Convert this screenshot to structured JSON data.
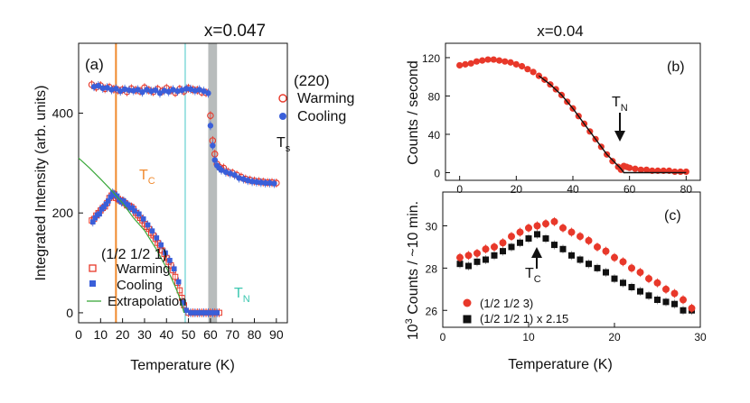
{
  "colors": {
    "warming": "#e8382a",
    "cooling": "#3a5fd9",
    "tc_line": "#f08a2e",
    "tn_line": "#9fe2e2",
    "ts_band": "#b8bcbc",
    "extrapolation": "#3aa83a",
    "cooling_b": "#111111",
    "fit_b": "#111111"
  },
  "chart_data": [
    {
      "id": "a",
      "type": "scatter",
      "title": "x=0.047",
      "panel_label": "(a)",
      "xlabel": "Temperature (K)",
      "ylabel": "Integrated Intensity (arb. units)",
      "xlim": [
        0,
        95
      ],
      "ylim": [
        -20,
        540
      ],
      "xticks": [
        0,
        10,
        20,
        30,
        40,
        50,
        60,
        70,
        80,
        90
      ],
      "yticks": [
        0,
        200,
        400
      ],
      "tc": {
        "label_main": "T",
        "label_sub": "C",
        "x": 17
      },
      "tn": {
        "label_main": "T",
        "label_sub": "N",
        "x": 48.5
      },
      "ts": {
        "label_main": "T",
        "label_sub": "s",
        "x_from": 59,
        "x_to": 63
      },
      "legend_220": {
        "title": "(220)",
        "warming": "Warming",
        "cooling": "Cooling"
      },
      "legend_half": {
        "title": "(1/2 1/2 1)",
        "warming": "Warming",
        "cooling": "Cooling",
        "extrapolation": "Extrapolation"
      },
      "series": [
        {
          "name": "(220) Warming",
          "marker": "open-circle",
          "x": [
            6,
            8,
            10,
            12,
            14,
            16,
            18,
            20,
            22,
            24,
            26,
            28,
            30,
            32,
            34,
            36,
            38,
            40,
            42,
            44,
            46,
            48,
            50,
            52,
            54,
            56,
            58,
            60,
            61,
            62,
            63,
            64,
            65,
            66,
            68,
            70,
            72,
            74,
            76,
            78,
            80,
            82,
            84,
            86,
            88,
            90
          ],
          "y": [
            457,
            452,
            455,
            449,
            452,
            448,
            446,
            447,
            443,
            449,
            446,
            444,
            451,
            446,
            443,
            448,
            444,
            450,
            446,
            441,
            448,
            444,
            450,
            447,
            446,
            442,
            441,
            395,
            345,
            318,
            298,
            292,
            288,
            290,
            282,
            280,
            276,
            272,
            268,
            266,
            264,
            263,
            262,
            261,
            261,
            260
          ]
        },
        {
          "name": "(220) Cooling",
          "marker": "filled-circle",
          "x": [
            7,
            9,
            11,
            13,
            15,
            17,
            19,
            21,
            23,
            25,
            27,
            29,
            31,
            33,
            35,
            37,
            39,
            41,
            43,
            45,
            47,
            49,
            51,
            53,
            55,
            57,
            59,
            60,
            61,
            62,
            63,
            64,
            65,
            67,
            69,
            71,
            73,
            75,
            77,
            79,
            81,
            83,
            85,
            87,
            89
          ],
          "y": [
            453,
            455,
            450,
            451,
            447,
            449,
            444,
            448,
            446,
            445,
            447,
            442,
            447,
            444,
            446,
            440,
            445,
            443,
            447,
            444,
            446,
            449,
            448,
            445,
            447,
            444,
            440,
            375,
            335,
            306,
            295,
            290,
            286,
            282,
            279,
            276,
            270,
            268,
            265,
            263,
            262,
            261,
            260,
            260,
            259
          ]
        },
        {
          "name": "(1/2 1/2 1) Warming",
          "marker": "open-square",
          "x": [
            6,
            7,
            8,
            9,
            10,
            11,
            12,
            13,
            14,
            15,
            16,
            17,
            18,
            19,
            20,
            21,
            22,
            23,
            24,
            25,
            26,
            27,
            28,
            29,
            30,
            31,
            32,
            33,
            34,
            35,
            36,
            37,
            38,
            39,
            40,
            41,
            42,
            43,
            44,
            45,
            46,
            47,
            48,
            50,
            52,
            54,
            56,
            58,
            60,
            62,
            64
          ],
          "y": [
            185,
            188,
            195,
            200,
            205,
            210,
            213,
            220,
            230,
            235,
            238,
            230,
            228,
            225,
            224,
            220,
            215,
            214,
            212,
            208,
            200,
            195,
            190,
            185,
            178,
            172,
            168,
            160,
            155,
            148,
            140,
            135,
            125,
            118,
            110,
            102,
            95,
            85,
            72,
            60,
            45,
            30,
            15,
            0,
            0,
            0,
            0,
            0,
            0,
            0,
            0
          ]
        },
        {
          "name": "(1/2 1/2 1) Cooling",
          "marker": "filled-square",
          "x": [
            6.5,
            7.5,
            8.5,
            9.5,
            10.5,
            11.5,
            12.5,
            13.5,
            14.5,
            15.5,
            16.5,
            17.5,
            18.5,
            19.5,
            20.5,
            21.5,
            22.5,
            23.5,
            24.5,
            25.5,
            27.5,
            29.5,
            31.5,
            33.5,
            35.5,
            37.5,
            39.5,
            41.5,
            43.5,
            45.5,
            47.5,
            49,
            51,
            53,
            55,
            57,
            59,
            61,
            63
          ],
          "y": [
            182,
            190,
            196,
            198,
            208,
            212,
            218,
            224,
            232,
            240,
            236,
            234,
            226,
            222,
            224,
            218,
            216,
            210,
            210,
            204,
            198,
            188,
            176,
            164,
            150,
            136,
            120,
            105,
            88,
            62,
            20,
            5,
            0,
            0,
            0,
            0,
            0,
            0,
            0
          ]
        },
        {
          "name": "Extrapolation",
          "marker": "line",
          "x": [
            0,
            5,
            10,
            15,
            20,
            25,
            30,
            35,
            40,
            42,
            44,
            46,
            47,
            48
          ],
          "y": [
            310,
            290,
            268,
            245,
            220,
            190,
            165,
            130,
            90,
            72,
            52,
            30,
            15,
            0
          ]
        }
      ]
    },
    {
      "id": "b",
      "type": "scatter",
      "title": "x=0.04",
      "panel_label": "(b)",
      "xlabel": "",
      "ylabel": "Counts / second",
      "xlim": [
        -5,
        85
      ],
      "ylim": [
        -8,
        135
      ],
      "xticks": [
        0,
        20,
        40,
        60,
        80
      ],
      "yticks": [
        0,
        40,
        80,
        120
      ],
      "tn": {
        "label_main": "T",
        "label_sub": "N",
        "x": 57,
        "y": 25
      },
      "series": [
        {
          "name": "data",
          "marker": "filled-circle",
          "x": [
            0,
            2,
            4,
            6,
            8,
            10,
            12,
            14,
            16,
            18,
            20,
            22,
            24,
            26,
            28,
            30,
            32,
            34,
            36,
            38,
            40,
            42,
            44,
            46,
            48,
            50,
            52,
            54,
            56,
            57,
            58,
            59,
            60,
            62,
            64,
            66,
            68,
            70,
            72,
            74,
            76,
            78,
            80
          ],
          "y": [
            112,
            113,
            114,
            116,
            117,
            118,
            118,
            117,
            116,
            115,
            113,
            111,
            108,
            105,
            101,
            97,
            92,
            87,
            81,
            74,
            67,
            59,
            51,
            43,
            35,
            27,
            19,
            12,
            6,
            3,
            7,
            6,
            5,
            4,
            3,
            3,
            2,
            2,
            2,
            2,
            1,
            1,
            1
          ]
        },
        {
          "name": "fit",
          "marker": "line",
          "x": [
            28,
            32,
            36,
            40,
            44,
            48,
            52,
            55,
            57,
            58,
            60,
            65,
            70,
            75,
            80
          ],
          "y": [
            101,
            92,
            81,
            67,
            51,
            35,
            19,
            10,
            4,
            0,
            0,
            0,
            0,
            0,
            0
          ]
        }
      ]
    },
    {
      "id": "c",
      "type": "scatter",
      "title": "",
      "panel_label": "(c)",
      "xlabel": "Temperature (K)",
      "ylabel_pre": "10",
      "ylabel_sup": "3",
      "ylabel_post": " Counts / ~10 min.",
      "xlim": [
        0,
        30
      ],
      "ylim": [
        25.2,
        31.6
      ],
      "xticks": [
        0,
        10,
        20,
        30
      ],
      "yticks": [
        26,
        28,
        30
      ],
      "tc": {
        "label_main": "T",
        "label_sub": "C",
        "x": 11
      },
      "series": [
        {
          "name": "(1/2 1/2 3)",
          "marker": "filled-circle",
          "x": [
            2,
            3,
            4,
            5,
            6,
            7,
            8,
            9,
            10,
            11,
            12,
            13,
            14,
            15,
            16,
            17,
            18,
            19,
            20,
            21,
            22,
            23,
            24,
            25,
            26,
            27,
            28,
            29
          ],
          "y": [
            28.5,
            28.6,
            28.7,
            28.9,
            29.0,
            29.2,
            29.5,
            29.7,
            29.9,
            30.0,
            30.1,
            30.2,
            29.9,
            29.7,
            29.5,
            29.3,
            29.0,
            28.8,
            28.5,
            28.3,
            28.0,
            27.8,
            27.5,
            27.3,
            27.0,
            26.8,
            26.5,
            26.1
          ]
        },
        {
          "name": "(1/2 1/2 1) x 2.15",
          "marker": "filled-square",
          "x": [
            2,
            3,
            4,
            5,
            6,
            7,
            8,
            9,
            10,
            11,
            12,
            13,
            14,
            15,
            16,
            17,
            18,
            19,
            20,
            21,
            22,
            23,
            24,
            25,
            26,
            27,
            28,
            29
          ],
          "y": [
            28.2,
            28.1,
            28.3,
            28.4,
            28.6,
            28.8,
            29.0,
            29.2,
            29.4,
            29.6,
            29.4,
            29.1,
            28.9,
            28.6,
            28.4,
            28.2,
            28.0,
            27.8,
            27.5,
            27.3,
            27.1,
            26.9,
            26.7,
            26.5,
            26.4,
            26.3,
            26.0,
            26.0
          ]
        }
      ]
    }
  ]
}
